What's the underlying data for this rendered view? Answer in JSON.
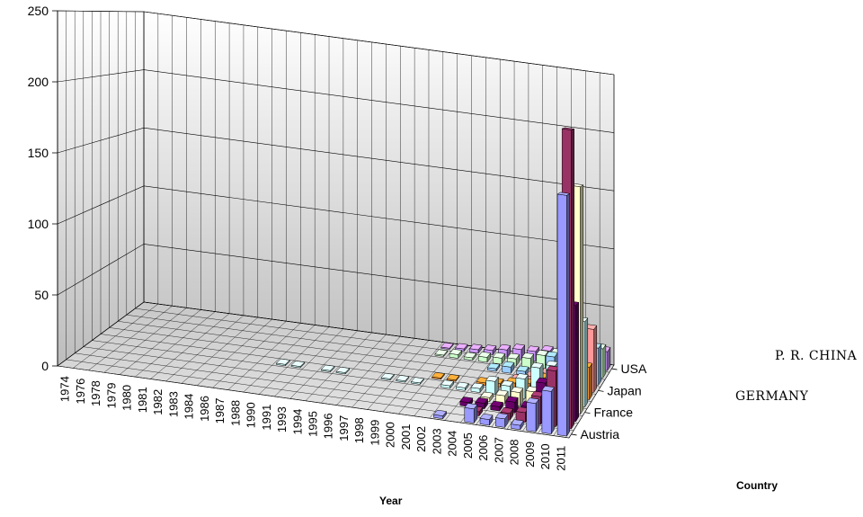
{
  "chart_data": {
    "type": "bar",
    "style": "3d-column",
    "xlabel": "Year",
    "zlabel": "Country",
    "ylim": [
      0,
      250
    ],
    "yticks": [
      0,
      50,
      100,
      150,
      200,
      250
    ],
    "grid": true,
    "years": [
      "1974",
      "1976",
      "1978",
      "1979",
      "1980",
      "1981",
      "1982",
      "1983",
      "1984",
      "1986",
      "1987",
      "1988",
      "1990",
      "1991",
      "1993",
      "1994",
      "1995",
      "1996",
      "1997",
      "1998",
      "1999",
      "2000",
      "2001",
      "2002",
      "2003",
      "2004",
      "2005",
      "2006",
      "2007",
      "2008",
      "2009",
      "2010",
      "2011"
    ],
    "depth_tick_labels": [
      "USA",
      "Japan",
      "France",
      "Austria"
    ],
    "extra_series_labels": [
      "P. R. CHINA",
      "GERMANY"
    ],
    "series": [
      {
        "name": "USA",
        "color": "#9999ff",
        "values": [
          0,
          0,
          0,
          0,
          0,
          0,
          0,
          0,
          0,
          0,
          0,
          0,
          0,
          0,
          0,
          0,
          0,
          0,
          0,
          0,
          0,
          0,
          0,
          0,
          2,
          0,
          10,
          4,
          6,
          3,
          20,
          30,
          170
        ]
      },
      {
        "name": "",
        "color": "#993366",
        "values": [
          0,
          0,
          0,
          0,
          0,
          0,
          0,
          0,
          0,
          0,
          0,
          0,
          0,
          0,
          0,
          0,
          0,
          0,
          0,
          0,
          0,
          0,
          0,
          0,
          0,
          0,
          3,
          0,
          5,
          7,
          20,
          40,
          215
        ]
      },
      {
        "name": "",
        "color": "#660066",
        "values": [
          0,
          0,
          0,
          0,
          0,
          0,
          0,
          0,
          0,
          0,
          0,
          0,
          0,
          0,
          0,
          0,
          0,
          0,
          0,
          0,
          0,
          0,
          0,
          0,
          0,
          3,
          4,
          3,
          8,
          6,
          25,
          35,
          85
        ]
      },
      {
        "name": "Japan",
        "color": "#ffffcc",
        "values": [
          0,
          0,
          0,
          0,
          0,
          0,
          0,
          0,
          0,
          0,
          0,
          0,
          0,
          0,
          0,
          0,
          0,
          0,
          0,
          0,
          0,
          0,
          0,
          0,
          0,
          0,
          3,
          6,
          10,
          12,
          18,
          15,
          170
        ]
      },
      {
        "name": "",
        "color": "#ccffff",
        "values": [
          0,
          0,
          0,
          0,
          0,
          0,
          0,
          0,
          0,
          0,
          0,
          0,
          1,
          1,
          0,
          1,
          1,
          0,
          0,
          1,
          1,
          1,
          0,
          2,
          2,
          3,
          10,
          8,
          15,
          25,
          28,
          35,
          65
        ]
      },
      {
        "name": "France",
        "color": "#ff9933",
        "values": [
          0,
          0,
          0,
          0,
          0,
          0,
          0,
          0,
          0,
          0,
          0,
          0,
          0,
          0,
          0,
          0,
          0,
          0,
          0,
          0,
          0,
          0,
          1,
          1,
          0,
          2,
          3,
          5,
          6,
          12,
          15,
          20,
          25
        ]
      },
      {
        "name": "",
        "color": "#ff9999",
        "values": [
          0,
          0,
          0,
          0,
          0,
          0,
          0,
          0,
          0,
          0,
          0,
          0,
          0,
          0,
          0,
          0,
          0,
          0,
          0,
          0,
          0,
          0,
          0,
          0,
          0,
          0,
          0,
          2,
          6,
          10,
          15,
          40,
          50
        ]
      },
      {
        "name": "",
        "color": "#99ccff",
        "values": [
          0,
          0,
          0,
          0,
          0,
          0,
          0,
          0,
          0,
          0,
          0,
          0,
          0,
          0,
          0,
          0,
          0,
          0,
          0,
          0,
          0,
          0,
          0,
          0,
          0,
          2,
          5,
          3,
          6,
          18,
          20,
          25,
          30
        ]
      },
      {
        "name": "Austria",
        "color": "#ccffcc",
        "values": [
          0,
          0,
          0,
          0,
          0,
          0,
          0,
          0,
          0,
          0,
          0,
          0,
          0,
          0,
          0,
          0,
          0,
          0,
          0,
          0,
          0,
          1,
          3,
          2,
          4,
          5,
          6,
          8,
          12,
          15,
          18,
          22,
          24
        ]
      },
      {
        "name": "",
        "color": "#cc99ff",
        "values": [
          0,
          0,
          0,
          0,
          0,
          0,
          0,
          0,
          0,
          0,
          0,
          0,
          0,
          0,
          0,
          0,
          0,
          0,
          0,
          0,
          0,
          1,
          2,
          3,
          4,
          6,
          8,
          8,
          10,
          12,
          14,
          15,
          16
        ]
      }
    ]
  }
}
